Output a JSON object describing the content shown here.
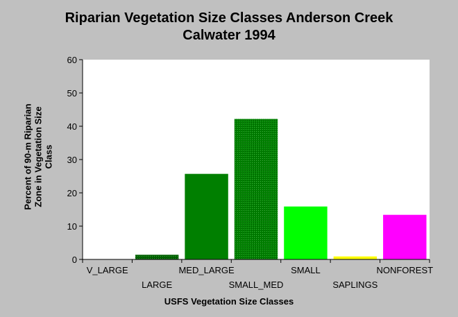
{
  "chart_data": {
    "type": "bar",
    "title": [
      "Riparian Vegetation Size Classes Anderson Creek",
      "Calwater 1994"
    ],
    "xlabel": "USFS Vegetation Size Classes",
    "ylabel": [
      "Percent of 90-m Riparian",
      "Zone in Vegetation Size",
      "Class"
    ],
    "ylim": [
      0,
      60
    ],
    "yticks": [
      "0",
      "10",
      "20",
      "30",
      "40",
      "50",
      "60"
    ],
    "categories": [
      "V_LARGE",
      "LARGE",
      "MED_LARGE",
      "SMALL_MED",
      "SMALL",
      "SAPLINGS",
      "NONFOREST"
    ],
    "values": [
      0,
      1.5,
      25.8,
      42.3,
      16,
      1,
      13.5
    ],
    "colors": [
      "#006400",
      "#006400",
      "#007f00",
      "#007f00",
      "#00ff00",
      "#ffff00",
      "#ff00ff"
    ],
    "hatched": [
      false,
      true,
      false,
      true,
      false,
      false,
      false
    ],
    "grid": false,
    "legend": "none"
  }
}
